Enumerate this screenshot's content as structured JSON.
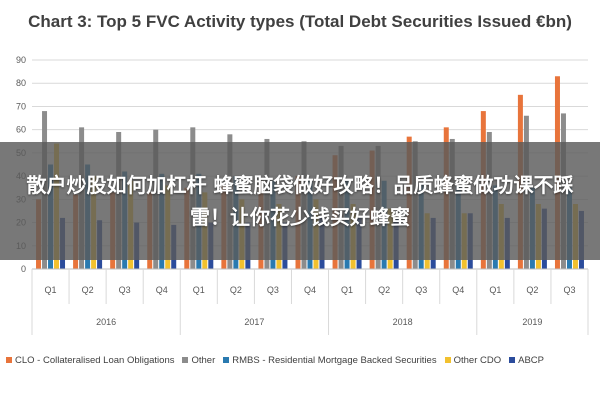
{
  "chart_data": {
    "type": "bar",
    "title": "Chart 3: Top 5 FVC Activity types (Total Debt Securities Issued €bn)",
    "ylim": [
      0,
      90
    ],
    "yticks": [
      0,
      10,
      20,
      30,
      40,
      50,
      60,
      70,
      80,
      90
    ],
    "grid": true,
    "legend_position": "bottom",
    "categories": [
      "Q1",
      "Q2",
      "Q3",
      "Q4",
      "Q1",
      "Q2",
      "Q3",
      "Q4",
      "Q1",
      "Q2",
      "Q3",
      "Q4",
      "Q1",
      "Q2",
      "Q3"
    ],
    "years": [
      {
        "label": "2016",
        "count": 4
      },
      {
        "label": "2017",
        "count": 4
      },
      {
        "label": "2018",
        "count": 4
      },
      {
        "label": "2019",
        "count": 3
      }
    ],
    "series": [
      {
        "name": "CLO - Collateralised Loan Obligations",
        "color": "#e8743b",
        "values": [
          30,
          32,
          33,
          33,
          35,
          36,
          38,
          40,
          49,
          51,
          57,
          61,
          68,
          75,
          83
        ]
      },
      {
        "name": "Other",
        "color": "#8c8c8c",
        "values": [
          68,
          61,
          59,
          60,
          61,
          58,
          56,
          55,
          53,
          53,
          55,
          56,
          59,
          66,
          67
        ]
      },
      {
        "name": "RMBS - Residential Mortgage Backed Securities",
        "color": "#2a7ab0",
        "values": [
          45,
          45,
          42,
          41,
          41,
          40,
          38,
          38,
          38,
          38,
          37,
          36,
          36,
          35,
          35
        ]
      },
      {
        "name": "Other CDO",
        "color": "#f2c12e",
        "values": [
          54,
          40,
          38,
          36,
          33,
          30,
          28,
          30,
          28,
          26,
          24,
          24,
          28,
          28,
          28
        ]
      },
      {
        "name": "ABCP",
        "color": "#2b4c9c",
        "values": [
          22,
          21,
          20,
          19,
          20,
          20,
          20,
          22,
          22,
          22,
          22,
          24,
          22,
          26,
          25
        ]
      }
    ]
  },
  "overlay": {
    "text": "散户炒股如何加杠杆 蜂蜜脑袋做好攻略！品质蜂蜜做功课不踩雷！让你花少钱买好蜂蜜"
  }
}
